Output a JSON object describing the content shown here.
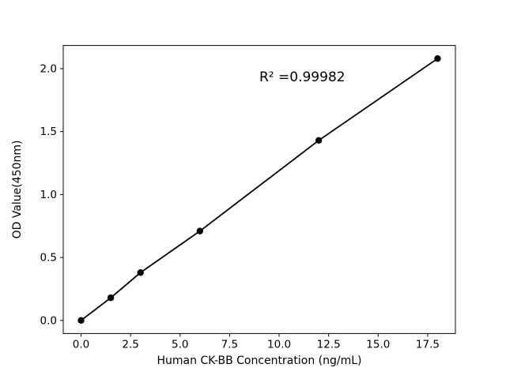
{
  "chart_data": {
    "type": "line",
    "title": "",
    "xlabel": "Human CK-BB Concentration (ng/mL)",
    "ylabel": "OD Value(450nm)",
    "x": [
      0,
      1.5,
      3,
      6,
      12,
      18
    ],
    "y": [
      0.0,
      0.18,
      0.38,
      0.71,
      1.43,
      2.08
    ],
    "xticks": [
      0.0,
      2.5,
      5.0,
      7.5,
      10.0,
      12.5,
      15.0,
      17.5
    ],
    "xtick_labels": [
      "0.0",
      "2.5",
      "5.0",
      "7.5",
      "10.0",
      "12.5",
      "15.0",
      "17.5"
    ],
    "yticks": [
      0.0,
      0.5,
      1.0,
      1.5,
      2.0
    ],
    "ytick_labels": [
      "0.0",
      "0.5",
      "1.0",
      "1.5",
      "2.0"
    ],
    "xlim": [
      -0.9,
      18.9
    ],
    "ylim": [
      -0.104,
      2.184
    ],
    "grid": false,
    "legend": "none",
    "marker": "circle",
    "annotation": {
      "text": "R² =0.99982",
      "x": 9.0,
      "y": 1.9
    },
    "colors": {
      "line": "#000000",
      "marker": "#000000",
      "axis": "#000000",
      "text": "#000000",
      "background": "#ffffff"
    }
  }
}
